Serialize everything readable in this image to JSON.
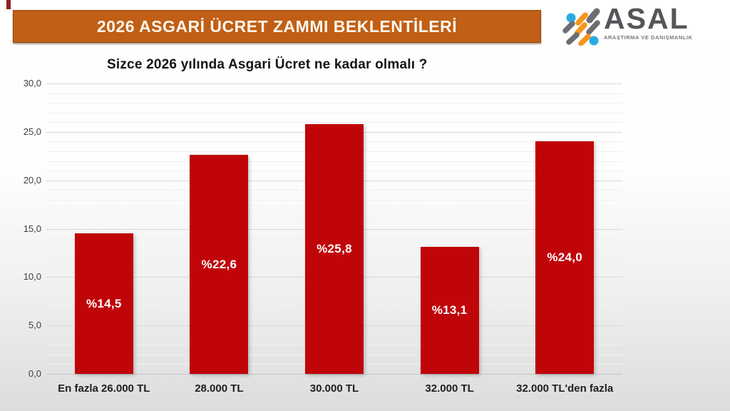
{
  "header": {
    "banner_title": "2026 ASGARİ ÜCRET ZAMMI BEKLENTİLERİ",
    "banner_color": "#c05f15"
  },
  "logo": {
    "name": "ASAL",
    "subtitle": "ARAŞTIRMA VE DANIŞMANLIK",
    "colors": {
      "blue": "#29abe2",
      "orange": "#f7941e",
      "gray": "#6d6e71"
    }
  },
  "chart_data": {
    "type": "bar",
    "title": "Sizce 2026 yılında Asgari Ücret ne kadar olmalı ?",
    "categories": [
      "En fazla 26.000 TL",
      "28.000 TL",
      "30.000 TL",
      "32.000 TL",
      "32.000 TL'den fazla"
    ],
    "values": [
      14.5,
      22.6,
      25.8,
      13.1,
      24.0
    ],
    "value_labels": [
      "%14,5",
      "%22,6",
      "%25,8",
      "%13,1",
      "%24,0"
    ],
    "y_ticks": [
      {
        "value": 30,
        "label": "30,0"
      },
      {
        "value": 25,
        "label": "25,0"
      },
      {
        "value": 20,
        "label": "20,0"
      },
      {
        "value": 15,
        "label": "15,0"
      },
      {
        "value": 10,
        "label": "10,0"
      },
      {
        "value": 5,
        "label": "5,0"
      },
      {
        "value": 0,
        "label": "0,0"
      }
    ],
    "ylim": [
      0,
      30
    ],
    "major_unit": 5,
    "minor_unit": 1,
    "grid": true,
    "legend": "none",
    "xlabel": "",
    "ylabel": "",
    "bar_color": "#c00509",
    "label_color": "#ffffff"
  }
}
